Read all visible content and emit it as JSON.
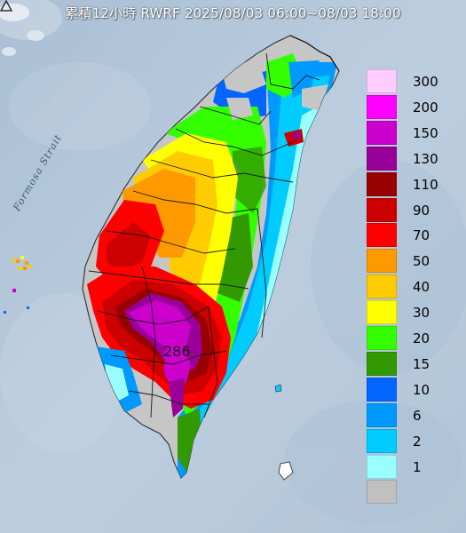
{
  "title": "累積12小時 RWRF 2025/08/03 06:00~08/03 18:00",
  "strait_label": "Formosa Strait",
  "max_station": {
    "value": "286"
  },
  "legend": {
    "items": [
      {
        "label": "300",
        "color": "#ffccff"
      },
      {
        "label": "200",
        "color": "#ff00ff"
      },
      {
        "label": "150",
        "color": "#cc00cc"
      },
      {
        "label": "130",
        "color": "#990099"
      },
      {
        "label": "110",
        "color": "#990000"
      },
      {
        "label": "90",
        "color": "#cc0000"
      },
      {
        "label": "70",
        "color": "#ff0000"
      },
      {
        "label": "50",
        "color": "#ff9900"
      },
      {
        "label": "40",
        "color": "#ffcc00"
      },
      {
        "label": "30",
        "color": "#ffff00"
      },
      {
        "label": "20",
        "color": "#33ff00"
      },
      {
        "label": "15",
        "color": "#339900"
      },
      {
        "label": "10",
        "color": "#0066ff"
      },
      {
        "label": "6",
        "color": "#0099ff"
      },
      {
        "label": "2",
        "color": "#00ccff"
      },
      {
        "label": "1",
        "color": "#99ffff"
      },
      {
        "label": "",
        "color": "#c0c0c0"
      }
    ]
  },
  "colors": {
    "sea": "#b7c8d8",
    "land_gray": "#c6c6c6",
    "boundary": "#1a1a1a"
  }
}
